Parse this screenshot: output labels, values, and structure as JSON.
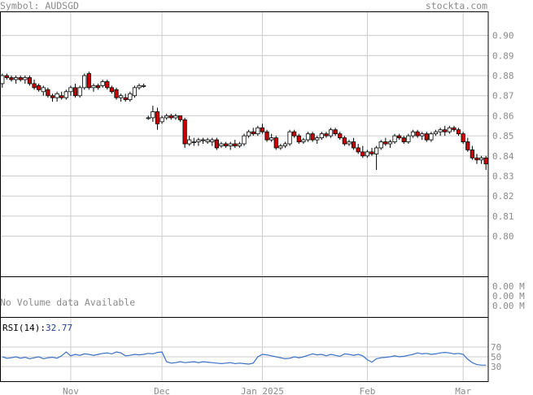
{
  "header": {
    "symbol_label": "Symbol: AUDSGD",
    "site": "stockta.com"
  },
  "colors": {
    "grid": "#cccccc",
    "frame": "#000000",
    "up_candle": "#ffffff",
    "down_candle": "#cc0000",
    "rsi_line": "#3a6fc4",
    "axis_text": "#8a8a8a",
    "rsi_value": "#1f3f9a"
  },
  "volume_panel": {
    "message": "No Volume data Available",
    "tick_labels": [
      "0.00 M",
      "0.00 M",
      "0.00 M"
    ]
  },
  "rsi_panel": {
    "label": "RSI(14):",
    "value": "32.77",
    "ticks": [
      70,
      50,
      30
    ],
    "values": [
      50,
      47,
      48,
      50,
      47,
      49,
      46,
      48,
      50,
      46,
      48,
      49,
      47,
      52,
      60,
      52,
      55,
      53,
      56,
      55,
      53,
      55,
      57,
      58,
      56,
      60,
      58,
      52,
      53,
      55,
      54,
      55,
      57,
      56,
      59,
      60,
      40,
      37,
      38,
      40,
      38,
      39,
      40,
      38,
      40,
      39,
      38,
      37,
      36,
      37,
      38,
      36,
      37,
      36,
      35,
      37,
      50,
      55,
      54,
      52,
      50,
      48,
      46,
      47,
      50,
      48,
      50,
      53,
      56,
      54,
      55,
      52,
      55,
      53,
      51,
      56,
      55,
      53,
      55,
      52,
      44,
      39,
      46,
      48,
      49,
      50,
      52,
      50,
      51,
      53,
      55,
      58,
      56,
      57,
      55,
      56,
      58,
      59,
      58,
      56,
      57,
      55,
      45,
      38,
      34,
      33,
      32.77
    ]
  },
  "chart_data": {
    "type": "candlestick",
    "title": "",
    "ylim": [
      0.78,
      0.912
    ],
    "y_ticks": [
      0.9,
      0.89,
      0.88,
      0.87,
      0.86,
      0.85,
      0.84,
      0.83,
      0.82,
      0.81,
      0.8
    ],
    "x_tick_labels": [
      "Nov",
      "Dec",
      "Jan 2025",
      "Feb",
      "Mar"
    ],
    "x_tick_positions": [
      15,
      35,
      57,
      80,
      101
    ],
    "grid": true,
    "candles": [
      [
        0.876,
        0.881,
        0.874,
        0.88
      ],
      [
        0.88,
        0.881,
        0.878,
        0.879
      ],
      [
        0.879,
        0.88,
        0.877,
        0.878
      ],
      [
        0.878,
        0.88,
        0.876,
        0.879
      ],
      [
        0.879,
        0.88,
        0.877,
        0.878
      ],
      [
        0.878,
        0.88,
        0.876,
        0.879
      ],
      [
        0.879,
        0.88,
        0.875,
        0.876
      ],
      [
        0.876,
        0.878,
        0.873,
        0.874
      ],
      [
        0.875,
        0.876,
        0.872,
        0.873
      ],
      [
        0.872,
        0.875,
        0.87,
        0.874
      ],
      [
        0.873,
        0.874,
        0.869,
        0.87
      ],
      [
        0.87,
        0.871,
        0.867,
        0.869
      ],
      [
        0.869,
        0.872,
        0.867,
        0.871
      ],
      [
        0.87,
        0.872,
        0.868,
        0.869
      ],
      [
        0.869,
        0.873,
        0.868,
        0.872
      ],
      [
        0.872,
        0.875,
        0.87,
        0.874
      ],
      [
        0.874,
        0.876,
        0.869,
        0.87
      ],
      [
        0.87,
        0.875,
        0.869,
        0.874
      ],
      [
        0.874,
        0.881,
        0.873,
        0.88
      ],
      [
        0.881,
        0.882,
        0.873,
        0.874
      ],
      [
        0.874,
        0.876,
        0.872,
        0.875
      ],
      [
        0.875,
        0.876,
        0.873,
        0.874
      ],
      [
        0.875,
        0.878,
        0.874,
        0.877
      ],
      [
        0.877,
        0.878,
        0.873,
        0.874
      ],
      [
        0.874,
        0.875,
        0.871,
        0.872
      ],
      [
        0.873,
        0.874,
        0.868,
        0.869
      ],
      [
        0.869,
        0.871,
        0.867,
        0.87
      ],
      [
        0.869,
        0.871,
        0.867,
        0.868
      ],
      [
        0.868,
        0.872,
        0.867,
        0.871
      ],
      [
        0.87,
        0.875,
        0.869,
        0.874
      ],
      [
        0.874,
        0.876,
        0.873,
        0.875
      ],
      [
        0.875,
        0.876,
        0.874,
        0.875
      ],
      [
        0.859,
        0.86,
        0.858,
        0.859
      ],
      [
        0.859,
        0.865,
        0.857,
        0.862
      ],
      [
        0.862,
        0.864,
        0.853,
        0.856
      ],
      [
        0.857,
        0.86,
        0.856,
        0.859
      ],
      [
        0.859,
        0.861,
        0.858,
        0.86
      ],
      [
        0.86,
        0.861,
        0.858,
        0.859
      ],
      [
        0.859,
        0.861,
        0.858,
        0.86
      ],
      [
        0.86,
        0.86,
        0.857,
        0.858
      ],
      [
        0.858,
        0.859,
        0.844,
        0.846
      ],
      [
        0.846,
        0.85,
        0.845,
        0.848
      ],
      [
        0.847,
        0.849,
        0.845,
        0.847
      ],
      [
        0.847,
        0.849,
        0.845,
        0.848
      ],
      [
        0.848,
        0.849,
        0.846,
        0.848
      ],
      [
        0.847,
        0.849,
        0.846,
        0.848
      ],
      [
        0.847,
        0.849,
        0.845,
        0.848
      ],
      [
        0.848,
        0.849,
        0.843,
        0.844
      ],
      [
        0.845,
        0.847,
        0.844,
        0.846
      ],
      [
        0.846,
        0.847,
        0.844,
        0.845
      ],
      [
        0.845,
        0.847,
        0.843,
        0.846
      ],
      [
        0.846,
        0.848,
        0.844,
        0.845
      ],
      [
        0.845,
        0.847,
        0.844,
        0.846
      ],
      [
        0.846,
        0.851,
        0.845,
        0.85
      ],
      [
        0.85,
        0.853,
        0.849,
        0.852
      ],
      [
        0.852,
        0.854,
        0.85,
        0.851
      ],
      [
        0.851,
        0.855,
        0.85,
        0.854
      ],
      [
        0.854,
        0.856,
        0.851,
        0.852
      ],
      [
        0.852,
        0.853,
        0.847,
        0.848
      ],
      [
        0.848,
        0.851,
        0.847,
        0.849
      ],
      [
        0.849,
        0.85,
        0.843,
        0.844
      ],
      [
        0.844,
        0.846,
        0.843,
        0.845
      ],
      [
        0.845,
        0.847,
        0.844,
        0.846
      ],
      [
        0.846,
        0.853,
        0.845,
        0.852
      ],
      [
        0.852,
        0.853,
        0.849,
        0.85
      ],
      [
        0.85,
        0.851,
        0.846,
        0.847
      ],
      [
        0.847,
        0.849,
        0.846,
        0.848
      ],
      [
        0.848,
        0.852,
        0.847,
        0.851
      ],
      [
        0.851,
        0.852,
        0.847,
        0.848
      ],
      [
        0.848,
        0.85,
        0.846,
        0.849
      ],
      [
        0.849,
        0.852,
        0.848,
        0.851
      ],
      [
        0.851,
        0.852,
        0.849,
        0.85
      ],
      [
        0.85,
        0.854,
        0.849,
        0.853
      ],
      [
        0.853,
        0.854,
        0.85,
        0.851
      ],
      [
        0.851,
        0.852,
        0.848,
        0.849
      ],
      [
        0.849,
        0.85,
        0.845,
        0.846
      ],
      [
        0.846,
        0.848,
        0.845,
        0.847
      ],
      [
        0.847,
        0.849,
        0.843,
        0.844
      ],
      [
        0.844,
        0.846,
        0.841,
        0.842
      ],
      [
        0.842,
        0.845,
        0.839,
        0.84
      ],
      [
        0.84,
        0.843,
        0.839,
        0.842
      ],
      [
        0.842,
        0.844,
        0.84,
        0.841
      ],
      [
        0.841,
        0.845,
        0.833,
        0.844
      ],
      [
        0.844,
        0.848,
        0.843,
        0.847
      ],
      [
        0.847,
        0.849,
        0.845,
        0.846
      ],
      [
        0.846,
        0.848,
        0.844,
        0.847
      ],
      [
        0.847,
        0.851,
        0.846,
        0.85
      ],
      [
        0.85,
        0.851,
        0.848,
        0.849
      ],
      [
        0.849,
        0.85,
        0.846,
        0.847
      ],
      [
        0.847,
        0.851,
        0.846,
        0.85
      ],
      [
        0.85,
        0.853,
        0.849,
        0.852
      ],
      [
        0.852,
        0.853,
        0.849,
        0.85
      ],
      [
        0.85,
        0.852,
        0.848,
        0.851
      ],
      [
        0.851,
        0.852,
        0.847,
        0.848
      ],
      [
        0.848,
        0.852,
        0.847,
        0.851
      ],
      [
        0.851,
        0.853,
        0.85,
        0.852
      ],
      [
        0.852,
        0.854,
        0.85,
        0.853
      ],
      [
        0.853,
        0.855,
        0.85,
        0.852
      ],
      [
        0.852,
        0.855,
        0.851,
        0.854
      ],
      [
        0.854,
        0.855,
        0.852,
        0.853
      ],
      [
        0.853,
        0.854,
        0.85,
        0.851
      ],
      [
        0.851,
        0.852,
        0.846,
        0.847
      ],
      [
        0.847,
        0.849,
        0.842,
        0.843
      ],
      [
        0.843,
        0.845,
        0.838,
        0.839
      ],
      [
        0.839,
        0.841,
        0.836,
        0.838
      ],
      [
        0.838,
        0.84,
        0.836,
        0.839
      ],
      [
        0.839,
        0.84,
        0.833,
        0.836
      ]
    ]
  }
}
